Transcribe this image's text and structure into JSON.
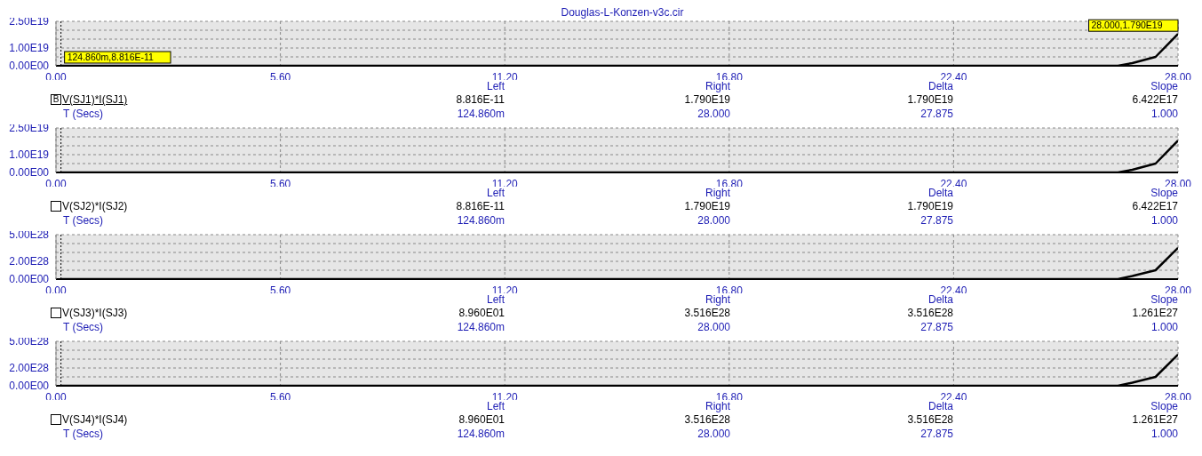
{
  "chart_data": [
    {
      "type": "line",
      "title": "Douglas-L-Konzen-v3c.cir",
      "xlabel": "T (Secs)",
      "legend": "bottom",
      "grid": true,
      "x": [
        0.12486,
        26.5,
        26.86,
        27.44,
        28
      ],
      "series": [
        {
          "name": "V(SJ1)*I(SJ1)",
          "color": "#000000",
          "values": [
            8.816e-11,
            0,
            1.5e+18,
            5e+18,
            1.79e+19
          ]
        }
      ],
      "xlim": [
        0,
        28
      ],
      "xticks": [
        {
          "value": 0,
          "label": "0.00"
        },
        {
          "value": 5.6,
          "label": "5.60"
        },
        {
          "value": 11.2,
          "label": "11.20"
        },
        {
          "value": 16.8,
          "label": "16.80"
        },
        {
          "value": 22.4,
          "label": "22.40"
        },
        {
          "value": 28,
          "label": "28.00"
        }
      ],
      "ylim": [
        0,
        2.5e+19
      ],
      "yticks": [
        {
          "value": 0,
          "label": "0.00E00"
        },
        {
          "value": 5e+18,
          "label": null
        },
        {
          "value": 1e+19,
          "label": "1.00E19"
        },
        {
          "value": 1.5e+19,
          "label": null
        },
        {
          "value": 2e+19,
          "label": null
        },
        {
          "value": 2.5e+19,
          "label": "2.50E19"
        }
      ],
      "ref_lines": [
        {
          "axis": "x",
          "value": 0.12486,
          "color": "#000000",
          "line_style": "dotted"
        }
      ],
      "annotations": [
        "Left",
        "Right",
        "Delta",
        "Slope",
        "8.816E-11",
        "1.790E19",
        "1.790E19",
        "6.422E17",
        "124.860m",
        "28.000",
        "27.875",
        "1.000",
        "B",
        {
          "text": "124.860m,8.816E-11",
          "x": 0.12486,
          "y": 8.816e-11
        },
        {
          "text": "28.000,1.790E19",
          "x": 28,
          "y": 1.79e+19
        }
      ]
    },
    {
      "type": "line",
      "xlabel": "T (Secs)",
      "legend": "bottom",
      "grid": true,
      "x": [
        0.12486,
        26.5,
        26.86,
        27.44,
        28
      ],
      "series": [
        {
          "name": "V(SJ2)*I(SJ2)",
          "color": "#000000",
          "values": [
            8.816e-11,
            0,
            1.5e+18,
            5e+18,
            1.79e+19
          ]
        }
      ],
      "xlim": [
        0,
        28
      ],
      "xticks": [
        {
          "value": 0,
          "label": "0.00"
        },
        {
          "value": 5.6,
          "label": "5.60"
        },
        {
          "value": 11.2,
          "label": "11.20"
        },
        {
          "value": 16.8,
          "label": "16.80"
        },
        {
          "value": 22.4,
          "label": "22.40"
        },
        {
          "value": 28,
          "label": "28.00"
        }
      ],
      "ylim": [
        0,
        2.5e+19
      ],
      "yticks": [
        {
          "value": 0,
          "label": "0.00E00"
        },
        {
          "value": 5e+18,
          "label": null
        },
        {
          "value": 1e+19,
          "label": "1.00E19"
        },
        {
          "value": 1.5e+19,
          "label": null
        },
        {
          "value": 2e+19,
          "label": null
        },
        {
          "value": 2.5e+19,
          "label": "2.50E19"
        }
      ],
      "ref_lines": [
        {
          "axis": "x",
          "value": 0.12486,
          "color": "#000000",
          "line_style": "dotted"
        }
      ],
      "annotations": [
        "Left",
        "Right",
        "Delta",
        "Slope",
        "8.816E-11",
        "1.790E19",
        "1.790E19",
        "6.422E17",
        "124.860m",
        "28.000",
        "27.875",
        "1.000"
      ]
    },
    {
      "type": "line",
      "xlabel": "T (Secs)",
      "legend": "bottom",
      "grid": true,
      "x": [
        0.12486,
        26.5,
        26.86,
        27.44,
        28
      ],
      "series": [
        {
          "name": "V(SJ3)*I(SJ3)",
          "color": "#000000",
          "values": [
            89.6,
            0,
            3.5e+27,
            1e+28,
            3.516e+28
          ]
        }
      ],
      "xlim": [
        0,
        28
      ],
      "xticks": [
        {
          "value": 0,
          "label": "0.00"
        },
        {
          "value": 5.6,
          "label": "5.60"
        },
        {
          "value": 11.2,
          "label": "11.20"
        },
        {
          "value": 16.8,
          "label": "16.80"
        },
        {
          "value": 22.4,
          "label": "22.40"
        },
        {
          "value": 28,
          "label": "28.00"
        }
      ],
      "ylim": [
        0,
        5e+28
      ],
      "yticks": [
        {
          "value": 0,
          "label": "0.00E00"
        },
        {
          "value": 1e+28,
          "label": null
        },
        {
          "value": 2e+28,
          "label": "2.00E28"
        },
        {
          "value": 3e+28,
          "label": null
        },
        {
          "value": 4e+28,
          "label": null
        },
        {
          "value": 5e+28,
          "label": "5.00E28"
        }
      ],
      "ref_lines": [
        {
          "axis": "x",
          "value": 0.12486,
          "color": "#000000",
          "line_style": "dotted"
        }
      ],
      "annotations": [
        "Left",
        "Right",
        "Delta",
        "Slope",
        "8.960E01",
        "3.516E28",
        "3.516E28",
        "1.261E27",
        "124.860m",
        "28.000",
        "27.875",
        "1.000"
      ]
    },
    {
      "type": "line",
      "xlabel": "T (Secs)",
      "legend": "bottom",
      "grid": true,
      "x": [
        0.12486,
        26.5,
        26.86,
        27.44,
        28
      ],
      "series": [
        {
          "name": "V(SJ4)*I(SJ4)",
          "color": "#000000",
          "values": [
            89.6,
            0,
            3.5e+27,
            1e+28,
            3.516e+28
          ]
        }
      ],
      "xlim": [
        0,
        28
      ],
      "xticks": [
        {
          "value": 0,
          "label": "0.00"
        },
        {
          "value": 5.6,
          "label": "5.60"
        },
        {
          "value": 11.2,
          "label": "11.20"
        },
        {
          "value": 16.8,
          "label": "16.80"
        },
        {
          "value": 22.4,
          "label": "22.40"
        },
        {
          "value": 28,
          "label": "28.00"
        }
      ],
      "ylim": [
        0,
        5e+28
      ],
      "yticks": [
        {
          "value": 0,
          "label": "0.00E00"
        },
        {
          "value": 1e+28,
          "label": null
        },
        {
          "value": 2e+28,
          "label": "2.00E28"
        },
        {
          "value": 3e+28,
          "label": null
        },
        {
          "value": 4e+28,
          "label": null
        },
        {
          "value": 5e+28,
          "label": "5.00E28"
        }
      ],
      "ref_lines": [
        {
          "axis": "x",
          "value": 0.12486,
          "color": "#000000",
          "line_style": "dotted"
        }
      ],
      "annotations": [
        "Left",
        "Right",
        "Delta",
        "Slope",
        "8.960E01",
        "3.516E28",
        "3.516E28",
        "1.261E27",
        "124.860m",
        "28.000",
        "27.875",
        "1.000"
      ]
    }
  ]
}
